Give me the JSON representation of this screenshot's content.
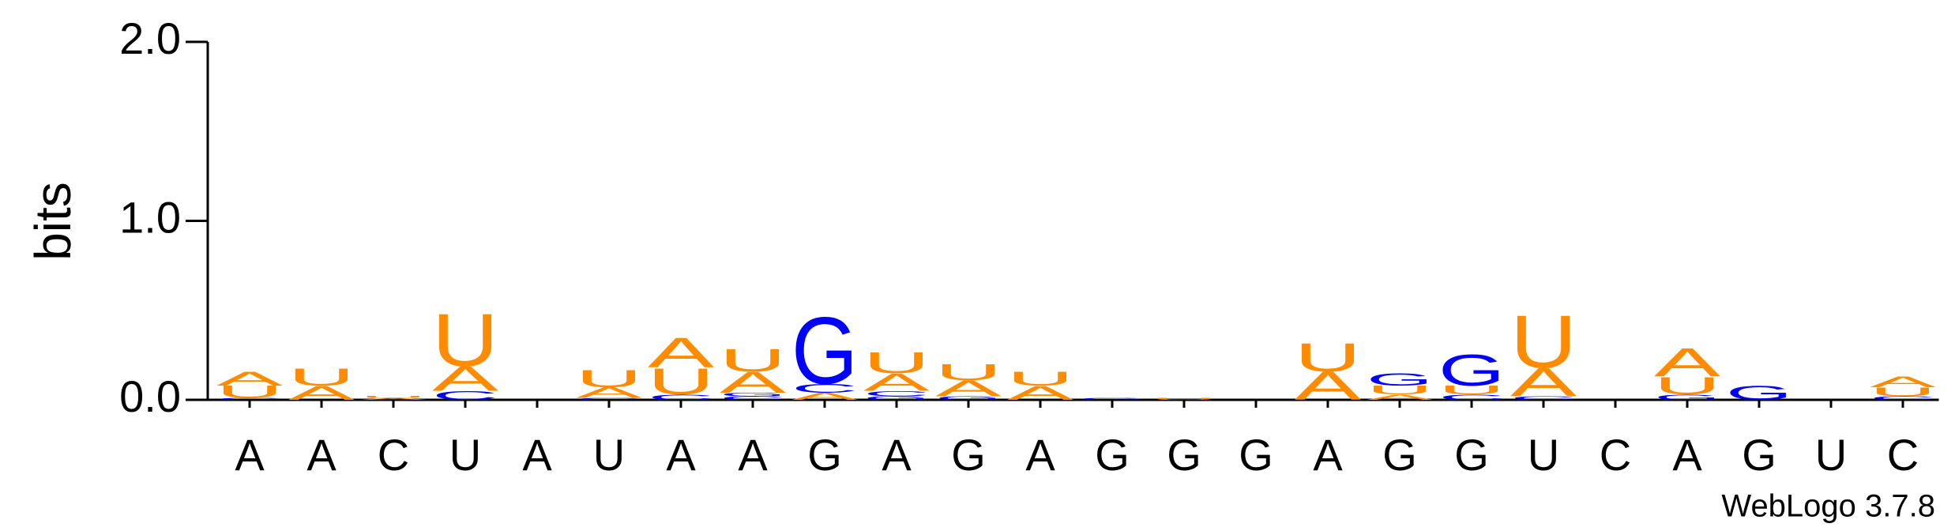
{
  "chart_data": {
    "type": "logo",
    "y_label": "bits",
    "credit": "WebLogo 3.7.8",
    "categories": [
      "A",
      "A",
      "C",
      "U",
      "A",
      "U",
      "A",
      "A",
      "G",
      "A",
      "G",
      "A",
      "G",
      "G",
      "G",
      "A",
      "G",
      "G",
      "U",
      "C",
      "A",
      "G",
      "U",
      "C"
    ],
    "ylim": [
      0,
      2
    ],
    "yticks": [
      {
        "value": 0,
        "label": "0.0"
      },
      {
        "value": 1,
        "label": "1.0"
      },
      {
        "value": 2,
        "label": "2.0"
      }
    ],
    "series": [
      {
        "name": "A",
        "color": "#ff8c00",
        "values": [
          0.08,
          0.08,
          0.01,
          0.14,
          0,
          0.06,
          0.17,
          0.12,
          0.04,
          0.1,
          0.09,
          0.08,
          0,
          0,
          0,
          0.16,
          0.03,
          0,
          0.16,
          0,
          0.16,
          0,
          0,
          0.06
        ]
      },
      {
        "name": "C",
        "color": "#0000ff",
        "values": [
          0.01,
          0,
          0,
          0.05,
          0,
          0.01,
          0.03,
          0.02,
          0.05,
          0.03,
          0,
          0,
          0,
          0,
          0,
          0,
          0,
          0.03,
          0.02,
          0,
          0,
          0,
          0,
          0.02
        ]
      },
      {
        "name": "G",
        "color": "#0000ff",
        "values": [
          0,
          0,
          0,
          0,
          0,
          0,
          0,
          0.02,
          0.38,
          0.02,
          0.02,
          0,
          0.01,
          0,
          0,
          0,
          0.07,
          0.18,
          0,
          0,
          0.03,
          0.08,
          0,
          0
        ]
      },
      {
        "name": "U",
        "color": "#ff8c00",
        "values": [
          0.07,
          0.1,
          0.01,
          0.3,
          0,
          0.1,
          0.15,
          0.13,
          0,
          0.12,
          0.09,
          0.08,
          0,
          0.01,
          0,
          0.16,
          0.05,
          0.05,
          0.3,
          0,
          0.1,
          0,
          0,
          0.05
        ]
      }
    ]
  }
}
